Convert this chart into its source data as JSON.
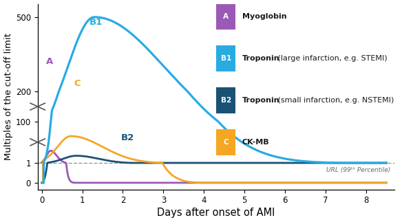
{
  "xlabel": "Days after onset of AMI",
  "ylabel": "Multiples of the cut-off limit",
  "xlim": [
    -0.1,
    8.7
  ],
  "url_label": "URL (99ᵗʰ Percentile)",
  "colors": {
    "myoglobin": "#9B59B6",
    "troponin_large": "#29ABE2",
    "troponin_small": "#1A5276",
    "ckMB": "#F5A623",
    "url_line": "#999999"
  },
  "legend_entries": [
    {
      "letter": "A",
      "color": "#9B59B6",
      "bold": "Myoglobin",
      "rest": ""
    },
    {
      "letter": "B1",
      "color": "#29ABE2",
      "bold": "Troponin",
      "rest": " (large infarction, e.g. STEMI)"
    },
    {
      "letter": "B2",
      "color": "#1A5276",
      "bold": "Troponin",
      "rest": " (small infarction, e.g. NSTEMI)"
    },
    {
      "letter": "C",
      "color": "#F5A623",
      "bold": "CK-MB",
      "rest": ""
    }
  ],
  "background_color": "#FFFFFF",
  "ytick_labels": [
    "0",
    "1",
    "100",
    "200",
    "500"
  ],
  "ytick_display": [
    0,
    0.12,
    0.37,
    0.55,
    1.0
  ],
  "xticks": [
    0,
    1,
    2,
    3,
    4,
    5,
    6,
    7,
    8
  ],
  "curve_labels": {
    "A": {
      "xd": 0.1,
      "yd": 0.73
    },
    "B1": {
      "xd": 1.18,
      "yd": 0.97
    },
    "B2": {
      "xd": 1.95,
      "yd": 0.27
    },
    "C": {
      "xd": 0.8,
      "yd": 0.6
    }
  }
}
